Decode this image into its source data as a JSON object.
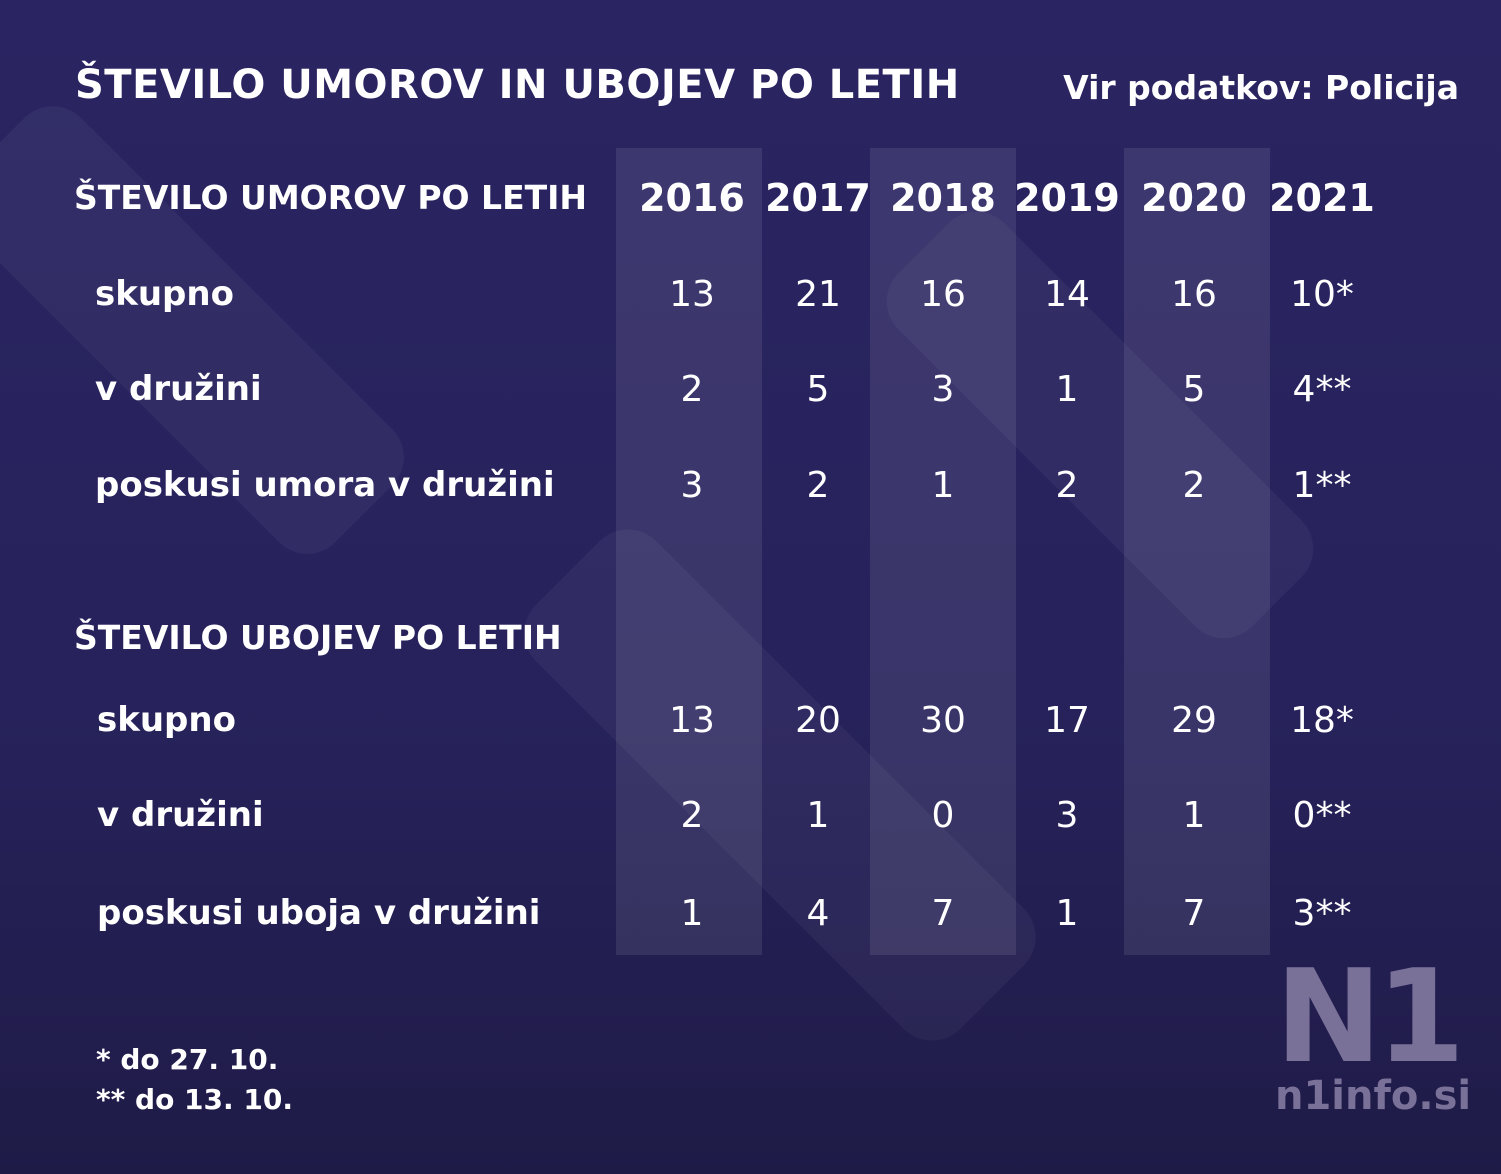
{
  "title": "ŠTEVILO UMOROV IN UBOJEV PO LETIH",
  "source": "Vir podatkov: Policija",
  "chart_data": {
    "type": "table",
    "columns": [
      "2016",
      "2017",
      "2018",
      "2019",
      "2020",
      "2021"
    ],
    "sections": [
      {
        "heading": "ŠTEVILO UMOROV PO LETIH",
        "rows": [
          {
            "label": "skupno",
            "values": [
              "13",
              "21",
              "16",
              "14",
              "16",
              "10*"
            ]
          },
          {
            "label": "v družini",
            "values": [
              "2",
              "5",
              "3",
              "1",
              "5",
              "4**"
            ]
          },
          {
            "label": "poskusi umora v družini",
            "values": [
              "3",
              "2",
              "1",
              "2",
              "2",
              "1**"
            ]
          }
        ]
      },
      {
        "heading": "ŠTEVILO UBOJEV PO LETIH",
        "rows": [
          {
            "label": "skupno",
            "values": [
              "13",
              "20",
              "30",
              "17",
              "29",
              "18*"
            ]
          },
          {
            "label": "v družini",
            "values": [
              "2",
              "1",
              "0",
              "3",
              "1",
              "0**"
            ]
          },
          {
            "label": "poskusi uboja v družini",
            "values": [
              "1",
              "4",
              "7",
              "1",
              "7",
              "3**"
            ]
          }
        ]
      }
    ]
  },
  "footnotes": [
    "* do 27. 10.",
    "** do 13. 10."
  ],
  "logo": {
    "mark": "N1",
    "site": "n1info.si"
  },
  "colors": {
    "background": "#28235e",
    "text": "#ffffff",
    "logo": "#7a7199"
  }
}
